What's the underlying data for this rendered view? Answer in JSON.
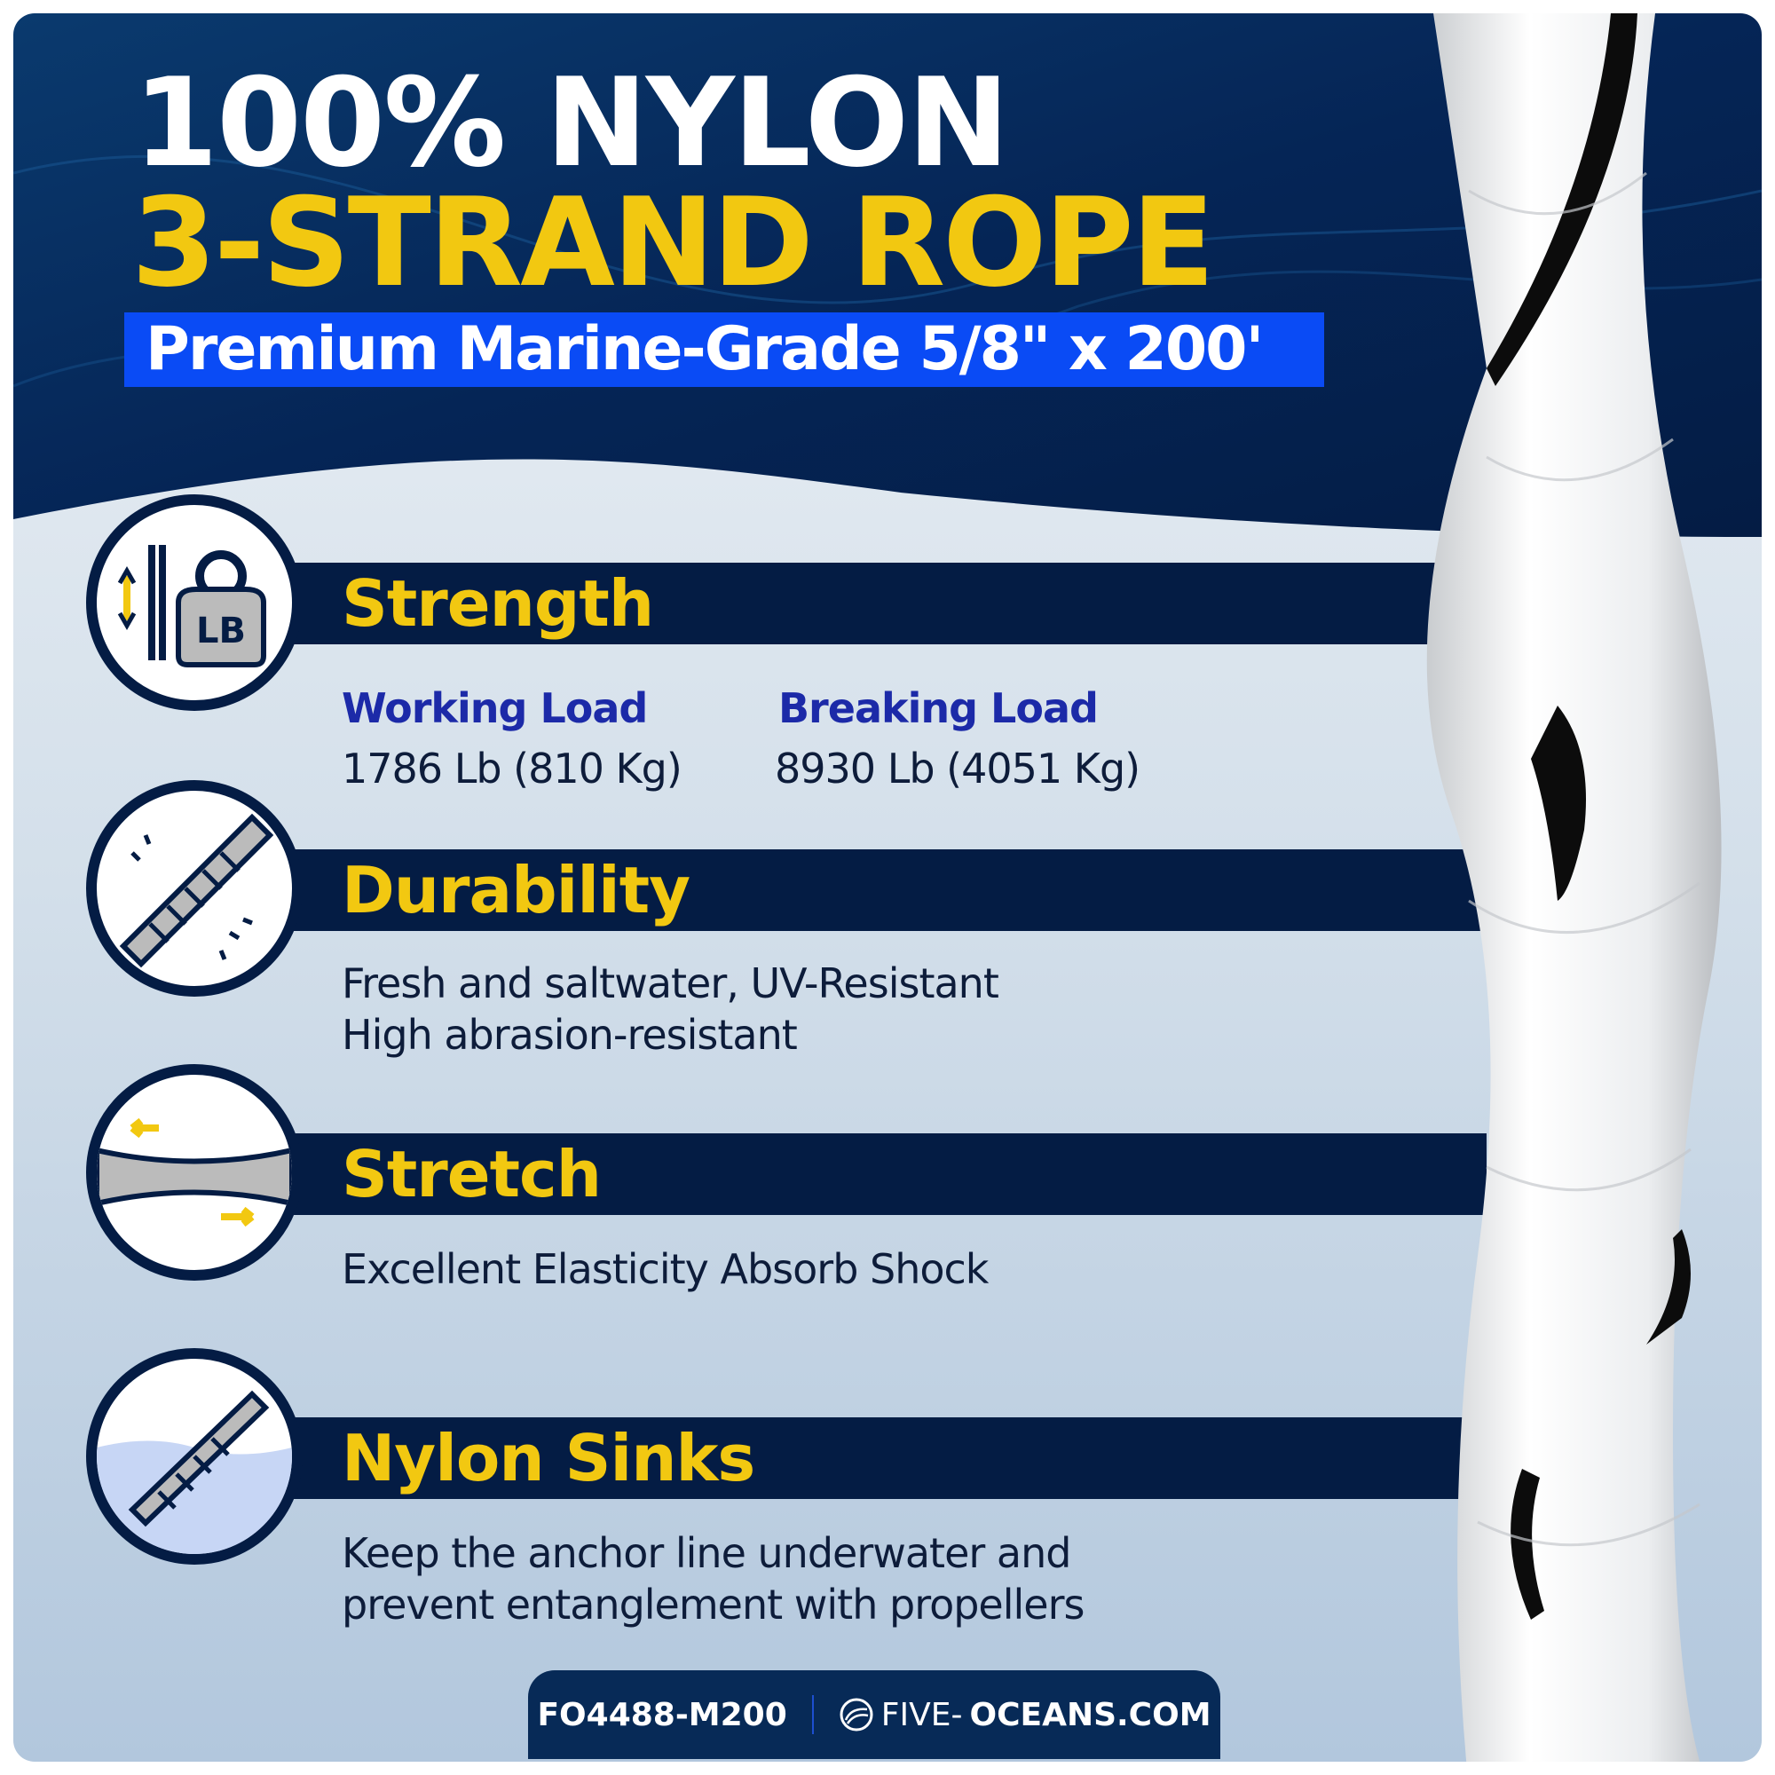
{
  "title_line1": "100% NYLON",
  "title_line2": "3-STRAND ROPE",
  "subtitle": "Premium Marine-Grade 5/8\" x 200'",
  "colors": {
    "navy": "#041c44",
    "yellow": "#f2c811",
    "banner_blue": "#0a4bf5",
    "label_blue": "#1c2aa8"
  },
  "sections": [
    {
      "title": "Strength",
      "icon": "kettlebell-lb-icon",
      "working_label": "Working Load",
      "working_value": "1786 Lb (810 Kg)",
      "breaking_label": "Breaking Load",
      "breaking_value": "8930 Lb (4051 Kg)"
    },
    {
      "title": "Durability",
      "icon": "rope-abrasion-icon",
      "lines": [
        "Fresh and saltwater, UV-Resistant",
        "High abrasion-resistant"
      ]
    },
    {
      "title": "Stretch",
      "icon": "rope-stretch-icon",
      "lines": [
        "Excellent Elasticity Absorb Shock"
      ]
    },
    {
      "title": "Nylon Sinks",
      "icon": "rope-underwater-icon",
      "lines": [
        "Keep the anchor line underwater and",
        "prevent entanglement with propellers"
      ]
    }
  ],
  "footer": {
    "sku": "FO4488-M200",
    "site_light": "FIVE-",
    "site_bold": "OCEANS.COM"
  }
}
